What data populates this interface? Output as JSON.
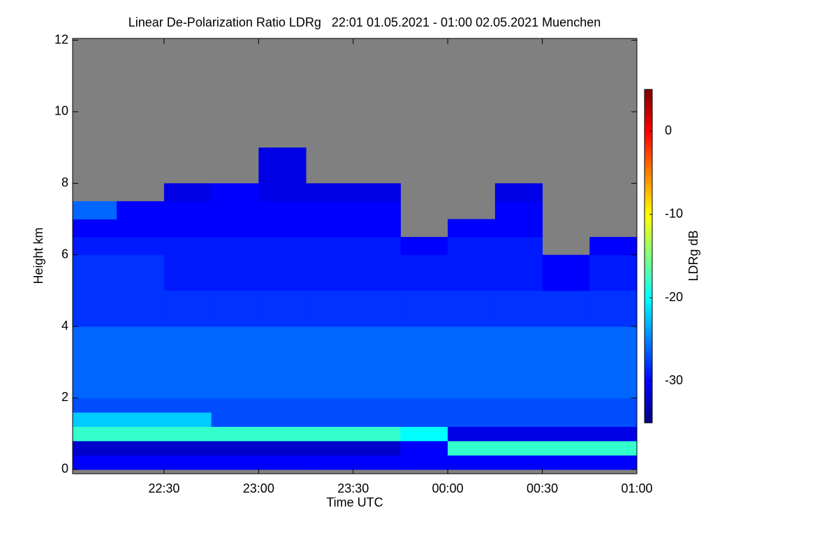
{
  "chart_data": {
    "type": "heatmap",
    "title": "Linear De-Polarization Ratio LDRg   22:01 01.05.2021 - 01:00 02.05.2021 Muenchen",
    "xlabel": "Time UTC",
    "ylabel": "Height km",
    "colorbar_label": "LDRg dB",
    "colormap": "jet",
    "missing_color": "#808080",
    "xlim": [
      22.0167,
      25
    ],
    "ylim": [
      -0.12,
      12.05
    ],
    "clim": [
      -35,
      5
    ],
    "xticks": [
      {
        "value": 22.5,
        "label": "22:30"
      },
      {
        "value": 23,
        "label": "23:00"
      },
      {
        "value": 23.5,
        "label": "23:30"
      },
      {
        "value": 24,
        "label": "00:00"
      },
      {
        "value": 24.5,
        "label": "00:30"
      },
      {
        "value": 25,
        "label": "01:00"
      }
    ],
    "yticks": [
      0,
      2,
      4,
      6,
      8,
      10,
      12
    ],
    "cticks": [
      0,
      -10,
      -20,
      -30
    ],
    "xbins": [
      22.0167,
      22.25,
      22.5,
      22.75,
      23,
      23.25,
      23.5,
      23.75,
      24,
      24.25,
      24.5,
      24.75,
      25
    ],
    "ybins": [
      0,
      0.4,
      0.8,
      1.2,
      1.6,
      2,
      3,
      4,
      5,
      6,
      6.5,
      7,
      7.5,
      8,
      9,
      12
    ],
    "values": [
      [
        -30,
        -30,
        -30,
        -30,
        -30,
        -30,
        -30,
        -30,
        -30,
        -30,
        -30,
        -30
      ],
      [
        -32,
        -32,
        -32,
        -32,
        -32,
        -32,
        -32,
        -30,
        -18,
        -18,
        -18,
        -18
      ],
      [
        -18,
        -18,
        -18,
        -18,
        -18,
        -18,
        -18,
        -20,
        -31,
        -31,
        -31,
        -31
      ],
      [
        -22,
        -22,
        -22,
        -27,
        -27,
        -27,
        -27,
        -27,
        -27,
        -27,
        -27,
        -27
      ],
      [
        -27,
        -27,
        -27,
        -27,
        -27,
        -27,
        -27,
        -27,
        -27,
        -27,
        -27,
        -27
      ],
      [
        -26,
        -26,
        -26,
        -26,
        -26,
        -26,
        -26,
        -26,
        -26,
        -26,
        -26,
        -26
      ],
      [
        -26,
        -26,
        -26,
        -26,
        -26,
        -26,
        -26,
        -26,
        -26,
        -26,
        -26,
        -26
      ],
      [
        -28,
        -28,
        -28,
        -28,
        -28,
        -28,
        -28,
        -28,
        -28,
        -28,
        -28,
        -28
      ],
      [
        -28,
        -28,
        -29,
        -29,
        -29,
        -29,
        -29,
        -29,
        -29,
        -29,
        -30,
        -29
      ],
      [
        -29,
        -29,
        -29,
        -29,
        -29,
        -29,
        -29,
        -30,
        -29,
        -29,
        null,
        -30
      ],
      [
        -30,
        -30,
        -30,
        -30,
        -30,
        -30,
        -30,
        null,
        -30,
        -30,
        null,
        null
      ],
      [
        -26,
        -30,
        -30,
        -30,
        -30,
        -30,
        -30,
        null,
        null,
        -30,
        null,
        null
      ],
      [
        null,
        null,
        -31,
        -30,
        -31,
        -31,
        -31,
        null,
        null,
        -31,
        null,
        null
      ],
      [
        null,
        null,
        null,
        null,
        -31,
        null,
        null,
        null,
        null,
        null,
        null,
        null
      ],
      [
        null,
        null,
        null,
        null,
        null,
        null,
        null,
        null,
        null,
        null,
        null,
        null
      ]
    ]
  }
}
